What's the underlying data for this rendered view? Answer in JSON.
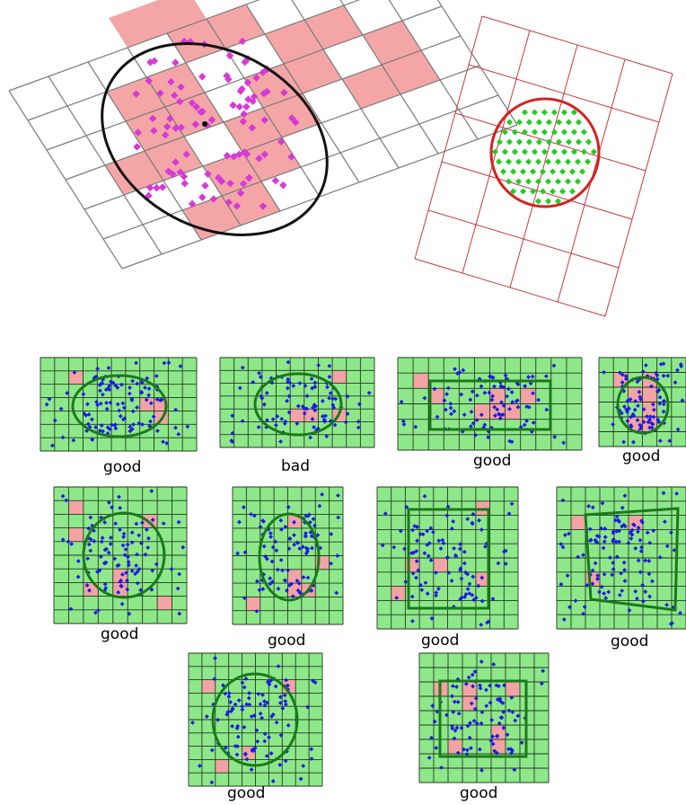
{
  "colors": {
    "grid_line": "#7a7a7a",
    "pink_cell": "#f4a6a6",
    "magenta_point": "#d63ad6",
    "black_ellipse": "#111111",
    "red_grid": "#c43a3a",
    "red_circle": "#d22222",
    "green_point": "#22cc22",
    "panel_bg": "#8ee88a",
    "panel_grid": "#1f3a1f",
    "panel_red": "#f2a3a3",
    "blue_point": "#1a1ae6",
    "green_shape": "#1a7a1a"
  },
  "panels": [
    {
      "caption": "good"
    },
    {
      "caption": "bad"
    },
    {
      "caption": "good"
    },
    {
      "caption": "good"
    },
    {
      "caption": "good"
    },
    {
      "caption": "good"
    },
    {
      "caption": "good"
    },
    {
      "caption": "good"
    },
    {
      "caption": "good"
    },
    {
      "caption": "good"
    }
  ]
}
